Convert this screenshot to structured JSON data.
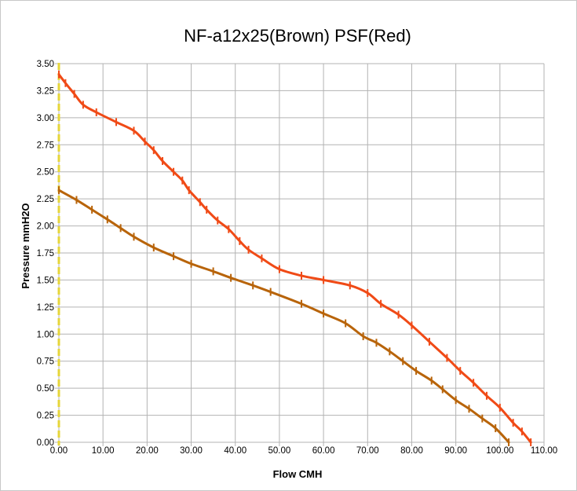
{
  "chart_data": {
    "type": "line",
    "title": "NF-a12x25(Brown) PSF(Red)",
    "xlabel": "Flow CMH",
    "ylabel": "Pressure mmH2O",
    "xlim": [
      0,
      110
    ],
    "ylim": [
      0,
      3.5
    ],
    "grid": true,
    "x_ticks": [
      "0.00",
      "10.00",
      "20.00",
      "30.00",
      "40.00",
      "50.00",
      "60.00",
      "70.00",
      "80.00",
      "90.00",
      "100.00",
      "110.00"
    ],
    "y_ticks": [
      "0.00",
      "0.25",
      "0.50",
      "0.75",
      "1.00",
      "1.25",
      "1.50",
      "1.75",
      "2.00",
      "2.25",
      "2.50",
      "2.75",
      "3.00",
      "3.25",
      "3.50"
    ],
    "series": [
      {
        "color": "#f04a16",
        "x": [
          0,
          1.5,
          3.5,
          5.5,
          8.5,
          13,
          17,
          19.5,
          21.5,
          23.5,
          26,
          28,
          29.5,
          32,
          33.5,
          36,
          38.5,
          41,
          43,
          46,
          50,
          55,
          60,
          66,
          70,
          73,
          77,
          80,
          84,
          88,
          91,
          94,
          97,
          100,
          103,
          105,
          107
        ],
        "y": [
          3.4,
          3.32,
          3.22,
          3.12,
          3.05,
          2.96,
          2.88,
          2.78,
          2.7,
          2.6,
          2.5,
          2.42,
          2.33,
          2.22,
          2.15,
          2.05,
          1.97,
          1.86,
          1.78,
          1.7,
          1.6,
          1.54,
          1.5,
          1.45,
          1.38,
          1.28,
          1.18,
          1.08,
          0.93,
          0.78,
          0.66,
          0.55,
          0.43,
          0.32,
          0.18,
          0.1,
          0.0
        ]
      },
      {
        "color": "#b8640a",
        "x": [
          0,
          4,
          7.5,
          11,
          14,
          17,
          21.5,
          26,
          30,
          35,
          39,
          44,
          48,
          55,
          60,
          65,
          69,
          72,
          75,
          78,
          81,
          84.5,
          87,
          90,
          93,
          96,
          99,
          102
        ],
        "y": [
          2.33,
          2.24,
          2.15,
          2.06,
          1.98,
          1.9,
          1.8,
          1.72,
          1.65,
          1.58,
          1.52,
          1.45,
          1.39,
          1.28,
          1.19,
          1.1,
          0.98,
          0.92,
          0.84,
          0.75,
          0.66,
          0.57,
          0.49,
          0.39,
          0.31,
          0.22,
          0.13,
          0.0
        ]
      }
    ]
  },
  "style": {
    "zero_line_color": "#e6d63a",
    "grid_color": "#b3b3b3"
  }
}
